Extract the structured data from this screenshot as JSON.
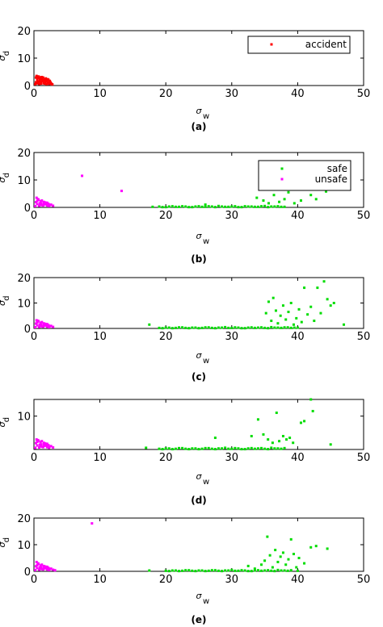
{
  "chart_data": [
    {
      "type": "scatter",
      "panel_label": "(a)",
      "xlabel": {
        "symbol": "σ",
        "subscript": "w"
      },
      "ylabel": {
        "symbol": "σ",
        "subscript": "d"
      },
      "xlim": [
        0,
        50
      ],
      "ylim": [
        0,
        20
      ],
      "xticks": [
        "0",
        "10",
        "20",
        "30",
        "40",
        "50"
      ],
      "yticks": [
        "0",
        "10",
        "20"
      ],
      "legend": "top-right",
      "series": [
        {
          "name": "accident",
          "color": "#ff0000",
          "x": [
            0.2,
            0.3,
            0.4,
            0.5,
            0.5,
            0.6,
            0.7,
            0.8,
            0.8,
            0.9,
            1.0,
            1.1,
            1.2,
            1.3,
            1.4,
            1.5,
            1.6,
            1.7,
            1.8,
            1.9,
            2.0,
            2.1,
            2.2,
            2.3,
            2.4,
            2.5,
            2.6,
            2.7,
            0.3,
            0.6,
            0.9,
            1.2,
            1.5,
            1.8,
            2.1,
            2.4,
            0.4,
            0.7,
            1.0,
            1.3,
            1.6,
            1.9,
            2.2,
            0.5,
            1.1,
            1.7,
            2.3,
            2.8
          ],
          "y": [
            0.5,
            1.2,
            3.5,
            0.8,
            2.1,
            3.2,
            1.5,
            0.6,
            2.8,
            1.9,
            3.0,
            0.7,
            2.4,
            1.6,
            2.9,
            0.9,
            2.2,
            1.3,
            2.6,
            0.5,
            1.8,
            2.3,
            1.1,
            0.6,
            1.7,
            1.2,
            0.8,
            0.5,
            2.9,
            1.4,
            2.5,
            3.1,
            1.8,
            2.0,
            0.9,
            1.4,
            1.0,
            3.3,
            1.5,
            2.0,
            0.7,
            1.5,
            2.1,
            2.7,
            1.3,
            1.9,
            0.8,
            0.4
          ]
        }
      ]
    },
    {
      "type": "scatter",
      "panel_label": "(b)",
      "xlabel": {
        "symbol": "σ",
        "subscript": "w"
      },
      "ylabel": {
        "symbol": "σ",
        "subscript": "d"
      },
      "xlim": [
        0,
        50
      ],
      "ylim": [
        0,
        20
      ],
      "xticks": [
        "0",
        "10",
        "20",
        "30",
        "40",
        "50"
      ],
      "yticks": [
        "0",
        "10",
        "20"
      ],
      "legend": "top-right",
      "series": [
        {
          "name": "safe",
          "color": "#00dd00",
          "x": [
            18,
            19,
            20,
            21,
            22,
            23,
            24,
            25,
            26,
            27,
            28,
            29,
            30,
            31,
            32,
            33,
            34,
            35,
            36,
            37,
            38,
            19.5,
            20.5,
            21.5,
            22.5,
            23.5,
            24.5,
            25.5,
            26.5,
            27.5,
            28.5,
            29.5,
            30.5,
            31.5,
            32.5,
            33.5,
            34.5,
            35.5,
            36.5,
            37.5,
            26,
            33.8,
            34.8,
            35.6,
            36.4,
            37.2,
            38.0,
            38.6,
            39.5,
            40.5,
            42.0,
            42.8,
            44.3
          ],
          "y": [
            0.2,
            0.3,
            0.1,
            0.4,
            0.2,
            0.3,
            0.1,
            0.4,
            0.2,
            0.3,
            0.5,
            0.2,
            0.3,
            0.1,
            0.4,
            0.3,
            0.2,
            0.5,
            0.3,
            0.4,
            0.2,
            0.1,
            0.3,
            0.2,
            0.4,
            0.1,
            0.3,
            0.2,
            0.4,
            0.1,
            0.3,
            0.2,
            0.4,
            0.1,
            0.3,
            0.2,
            0.4,
            0.1,
            0.3,
            0.2,
            1.0,
            3.5,
            2.5,
            1.5,
            4.5,
            2.0,
            3.0,
            5.5,
            1.5,
            2.5,
            4.5,
            3.0,
            5.8
          ]
        },
        {
          "name": "unsafe",
          "color": "#ff00ff",
          "x": [
            0.2,
            0.4,
            0.5,
            0.7,
            0.8,
            1.0,
            1.1,
            1.3,
            1.5,
            1.6,
            1.8,
            2.0,
            2.2,
            2.4,
            2.6,
            2.9,
            0.3,
            0.6,
            0.9,
            1.2,
            1.4,
            1.7,
            1.9,
            2.3,
            0.5,
            1.0,
            1.5,
            2.0,
            7.3,
            13.3
          ],
          "y": [
            0.5,
            3.5,
            1.2,
            2.8,
            0.6,
            2.2,
            1.5,
            0.8,
            2.0,
            1.1,
            1.6,
            0.7,
            1.3,
            0.9,
            1.0,
            0.6,
            1.9,
            3.0,
            1.4,
            2.5,
            0.7,
            1.8,
            1.2,
            0.5,
            2.3,
            0.9,
            1.5,
            1.7,
            11.5,
            6.0
          ]
        }
      ]
    },
    {
      "type": "scatter",
      "panel_label": "(c)",
      "xlabel": {
        "symbol": "σ",
        "subscript": "w"
      },
      "ylabel": {
        "symbol": "σ",
        "subscript": "d"
      },
      "xlim": [
        0,
        50
      ],
      "ylim": [
        0,
        20
      ],
      "xticks": [
        "0",
        "10",
        "20",
        "30",
        "40",
        "50"
      ],
      "yticks": [
        "0",
        "10",
        "20"
      ],
      "series": [
        {
          "name": "safe",
          "color": "#00dd00",
          "x": [
            17.5,
            19,
            20,
            21,
            22,
            23,
            24,
            25,
            26,
            27,
            28,
            29,
            30,
            31,
            32,
            33,
            34,
            35,
            36,
            37,
            38,
            39,
            40,
            19.5,
            20.5,
            21.5,
            22.5,
            23.5,
            24.5,
            25.5,
            26.5,
            27.5,
            28.5,
            29.5,
            30.5,
            31.5,
            32.5,
            33.5,
            34.5,
            35.5,
            36.5,
            37.5,
            38.5,
            39.5,
            35.2,
            35.6,
            36.0,
            36.3,
            36.7,
            37.0,
            37.4,
            37.8,
            38.2,
            38.6,
            39.0,
            39.4,
            39.8,
            40.2,
            40.6,
            41.0,
            41.5,
            42.0,
            42.5,
            43.0,
            43.5,
            44.0,
            44.5,
            45.0,
            45.5,
            47.0
          ],
          "y": [
            1.5,
            0.2,
            0.3,
            0.1,
            0.4,
            0.2,
            0.3,
            0.1,
            0.4,
            0.2,
            0.3,
            0.5,
            0.2,
            0.3,
            0.1,
            0.4,
            0.3,
            0.2,
            0.5,
            0.3,
            0.4,
            0.2,
            0.3,
            0.1,
            0.3,
            0.2,
            0.4,
            0.1,
            0.3,
            0.2,
            0.4,
            0.1,
            0.3,
            0.2,
            0.4,
            0.1,
            0.3,
            0.2,
            0.4,
            0.1,
            0.3,
            0.2,
            0.4,
            0.3,
            6.0,
            10.5,
            3.0,
            12.0,
            7.0,
            2.0,
            5.0,
            9.0,
            3.5,
            6.5,
            10.0,
            1.5,
            4.0,
            7.5,
            2.5,
            16.0,
            5.5,
            8.5,
            3.0,
            16.0,
            6.0,
            18.5,
            11.5,
            9.0,
            10.0,
            1.5
          ]
        },
        {
          "name": "unsafe",
          "color": "#ff00ff",
          "x": [
            0.2,
            0.4,
            0.5,
            0.7,
            0.8,
            1.0,
            1.1,
            1.3,
            1.5,
            1.6,
            1.8,
            2.0,
            2.2,
            2.4,
            2.6,
            2.9,
            0.3,
            0.6,
            0.9,
            1.2,
            1.4,
            1.7,
            1.9,
            2.3,
            0.5,
            1.0,
            1.5,
            2.0
          ],
          "y": [
            0.5,
            3.2,
            1.2,
            2.8,
            0.6,
            2.2,
            1.5,
            0.8,
            2.0,
            1.1,
            1.6,
            0.7,
            1.3,
            0.9,
            1.0,
            0.6,
            1.9,
            3.0,
            1.4,
            2.5,
            0.7,
            1.8,
            1.2,
            0.5,
            2.3,
            0.9,
            1.5,
            1.7
          ]
        }
      ]
    },
    {
      "type": "scatter",
      "panel_label": "(d)",
      "xlabel": {
        "symbol": "σ",
        "subscript": "w"
      },
      "ylabel": {
        "symbol": "σ",
        "subscript": "d"
      },
      "xlim": [
        0,
        50
      ],
      "ylim": [
        0,
        15
      ],
      "xticks": [
        "0",
        "10",
        "20",
        "30",
        "40",
        "50"
      ],
      "yticks": [
        "10"
      ],
      "series": [
        {
          "name": "safe",
          "color": "#00dd00",
          "x": [
            17,
            19,
            20,
            21,
            22,
            23,
            24,
            25,
            26,
            27,
            28,
            29,
            30,
            31,
            32,
            33,
            34,
            35,
            36,
            37,
            38,
            19.5,
            20.5,
            21.5,
            22.5,
            23.5,
            24.5,
            25.5,
            26.5,
            27.5,
            28.5,
            29.5,
            30.5,
            31.5,
            32.5,
            33.5,
            34.5,
            35.5,
            36.5,
            37.5,
            27.5,
            33.0,
            34.0,
            34.8,
            35.5,
            36.2,
            36.8,
            37.2,
            37.8,
            38.3,
            38.8,
            39.3,
            40.5,
            41.0,
            42.0,
            42.3,
            45.0
          ],
          "y": [
            0.5,
            0.2,
            0.3,
            0.1,
            0.4,
            0.2,
            0.3,
            0.1,
            0.4,
            0.2,
            0.3,
            0.5,
            0.2,
            0.3,
            0.1,
            0.4,
            0.3,
            0.2,
            0.5,
            0.3,
            0.4,
            0.1,
            0.3,
            0.2,
            0.4,
            0.1,
            0.3,
            0.2,
            0.4,
            0.1,
            0.3,
            0.2,
            0.4,
            0.1,
            0.3,
            0.2,
            0.4,
            0.1,
            0.3,
            0.2,
            3.5,
            4.0,
            9.0,
            4.5,
            3.0,
            2.0,
            11.0,
            2.5,
            4.0,
            3.0,
            3.5,
            2.0,
            8.0,
            8.5,
            15.0,
            11.5,
            1.5
          ]
        },
        {
          "name": "unsafe",
          "color": "#ff00ff",
          "x": [
            0.2,
            0.4,
            0.5,
            0.7,
            0.8,
            1.0,
            1.1,
            1.3,
            1.5,
            1.6,
            1.8,
            2.0,
            2.2,
            2.4,
            2.6,
            2.9,
            0.3,
            0.6,
            0.9,
            1.2,
            1.4,
            1.7,
            1.9,
            2.3,
            0.5,
            1.0,
            1.5,
            2.0
          ],
          "y": [
            0.5,
            3.0,
            1.2,
            2.6,
            0.6,
            2.2,
            1.5,
            0.8,
            2.0,
            1.1,
            1.6,
            0.7,
            1.3,
            0.9,
            1.0,
            0.6,
            1.9,
            2.8,
            1.4,
            2.5,
            0.7,
            1.8,
            1.2,
            0.5,
            2.3,
            0.9,
            1.5,
            1.7
          ]
        }
      ]
    },
    {
      "type": "scatter",
      "panel_label": "(e)",
      "xlabel": {
        "symbol": "σ",
        "subscript": "w"
      },
      "ylabel": {
        "symbol": "σ",
        "subscript": "d"
      },
      "xlim": [
        0,
        50
      ],
      "ylim": [
        0,
        20
      ],
      "xticks": [
        "0",
        "10",
        "20",
        "30",
        "40",
        "50"
      ],
      "yticks": [
        "0",
        "10",
        "20"
      ],
      "series": [
        {
          "name": "safe",
          "color": "#00dd00",
          "x": [
            17.5,
            20,
            21,
            22,
            23,
            24,
            25,
            26,
            27,
            28,
            29,
            30,
            31,
            32,
            33,
            34,
            35,
            36,
            37,
            38,
            39,
            40,
            20.5,
            21.5,
            22.5,
            23.5,
            24.5,
            25.5,
            26.5,
            27.5,
            28.5,
            29.5,
            30.5,
            31.5,
            32.5,
            33.5,
            34.5,
            35.5,
            36.5,
            37.5,
            38.5,
            32.5,
            33.5,
            34.5,
            35.0,
            35.4,
            35.8,
            36.2,
            36.6,
            37.0,
            37.4,
            37.8,
            38.2,
            38.6,
            39.0,
            39.4,
            39.8,
            40.2,
            41.0,
            42.0,
            42.8,
            44.5
          ],
          "y": [
            0.3,
            0.2,
            0.3,
            0.1,
            0.4,
            0.2,
            0.3,
            0.1,
            0.4,
            0.2,
            0.3,
            0.5,
            0.2,
            0.3,
            0.1,
            0.4,
            0.3,
            0.2,
            0.5,
            0.3,
            0.4,
            0.2,
            0.1,
            0.3,
            0.2,
            0.4,
            0.1,
            0.3,
            0.2,
            0.4,
            0.1,
            0.3,
            0.2,
            0.4,
            0.1,
            0.3,
            0.2,
            0.4,
            0.1,
            0.3,
            0.2,
            2.0,
            1.0,
            2.5,
            4.0,
            13.0,
            6.0,
            1.5,
            8.0,
            3.5,
            5.5,
            7.0,
            2.5,
            4.5,
            12.0,
            6.5,
            1.5,
            5.0,
            3.0,
            9.0,
            9.5,
            8.5
          ]
        },
        {
          "name": "unsafe",
          "color": "#ff00ff",
          "x": [
            0.2,
            0.4,
            0.5,
            0.7,
            0.8,
            1.0,
            1.1,
            1.3,
            1.5,
            1.6,
            1.8,
            2.0,
            2.2,
            2.4,
            2.6,
            2.9,
            3.2,
            0.3,
            0.6,
            0.9,
            1.2,
            1.4,
            1.7,
            1.9,
            2.3,
            0.5,
            1.0,
            1.5,
            2.0,
            8.8
          ],
          "y": [
            0.5,
            3.5,
            1.2,
            2.8,
            0.6,
            2.2,
            1.5,
            0.8,
            2.0,
            1.1,
            1.6,
            0.7,
            1.3,
            0.9,
            1.0,
            0.6,
            0.4,
            1.9,
            3.0,
            1.4,
            2.5,
            0.7,
            1.8,
            1.2,
            0.5,
            2.3,
            0.9,
            1.5,
            1.7,
            18.0
          ]
        }
      ]
    }
  ]
}
